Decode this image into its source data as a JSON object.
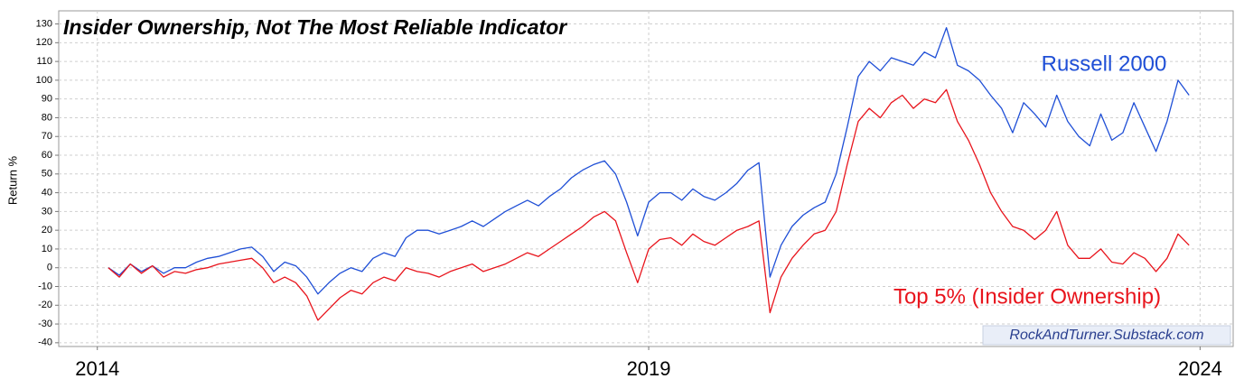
{
  "chart_data": {
    "type": "line",
    "title": "Insider Ownership, Not The Most Reliable Indicator",
    "y_label": "Return %",
    "watermark": "RockAndTurner.Substack.com",
    "grid": true,
    "xlim": [
      2013.65,
      2024.3
    ],
    "xticks": [
      2014,
      2019,
      2024
    ],
    "ylim": [
      -42,
      137
    ],
    "yticks": [
      -40,
      -30,
      -20,
      -10,
      0,
      10,
      20,
      30,
      40,
      50,
      60,
      70,
      80,
      90,
      100,
      110,
      120,
      130
    ],
    "x": [
      2014.1,
      2014.2,
      2014.3,
      2014.4,
      2014.5,
      2014.6,
      2014.7,
      2014.8,
      2014.9,
      2015.0,
      2015.1,
      2015.2,
      2015.3,
      2015.4,
      2015.5,
      2015.6,
      2015.7,
      2015.8,
      2015.9,
      2016.0,
      2016.1,
      2016.2,
      2016.3,
      2016.4,
      2016.5,
      2016.6,
      2016.7,
      2016.8,
      2016.9,
      2017.0,
      2017.1,
      2017.2,
      2017.3,
      2017.4,
      2017.5,
      2017.6,
      2017.7,
      2017.8,
      2017.9,
      2018.0,
      2018.1,
      2018.2,
      2018.3,
      2018.4,
      2018.5,
      2018.6,
      2018.7,
      2018.8,
      2018.9,
      2019.0,
      2019.1,
      2019.2,
      2019.3,
      2019.4,
      2019.5,
      2019.6,
      2019.7,
      2019.8,
      2019.9,
      2020.0,
      2020.1,
      2020.2,
      2020.3,
      2020.4,
      2020.5,
      2020.6,
      2020.7,
      2020.8,
      2020.9,
      2021.0,
      2021.1,
      2021.2,
      2021.3,
      2021.4,
      2021.5,
      2021.6,
      2021.7,
      2021.8,
      2021.9,
      2022.0,
      2022.1,
      2022.2,
      2022.3,
      2022.4,
      2022.5,
      2022.6,
      2022.7,
      2022.8,
      2022.9,
      2023.0,
      2023.1,
      2023.2,
      2023.3,
      2023.4,
      2023.5,
      2023.6,
      2023.7,
      2023.8,
      2023.9
    ],
    "series": [
      {
        "name": "Russell 2000",
        "color": "#1f4fd6",
        "values": [
          0,
          -4,
          2,
          -2,
          1,
          -3,
          0,
          0,
          3,
          5,
          6,
          8,
          10,
          11,
          6,
          -2,
          3,
          1,
          -5,
          -14,
          -8,
          -3,
          0,
          -2,
          5,
          8,
          6,
          16,
          20,
          20,
          18,
          20,
          22,
          25,
          22,
          26,
          30,
          33,
          36,
          33,
          38,
          42,
          48,
          52,
          55,
          57,
          50,
          35,
          17,
          35,
          40,
          40,
          36,
          42,
          38,
          36,
          40,
          45,
          52,
          56,
          -5,
          12,
          22,
          28,
          32,
          35,
          50,
          75,
          102,
          110,
          105,
          112,
          110,
          108,
          115,
          112,
          128,
          108,
          105,
          100,
          92,
          85,
          72,
          88,
          82,
          75,
          92,
          78,
          70,
          65,
          82,
          68,
          72,
          88,
          75,
          62,
          78,
          100,
          92
        ]
      },
      {
        "name": "Top 5% (Insider Ownership)",
        "color": "#e8141c",
        "values": [
          0,
          -5,
          2,
          -3,
          1,
          -5,
          -2,
          -3,
          -1,
          0,
          2,
          3,
          4,
          5,
          0,
          -8,
          -5,
          -8,
          -15,
          -28,
          -22,
          -16,
          -12,
          -14,
          -8,
          -5,
          -7,
          0,
          -2,
          -3,
          -5,
          -2,
          0,
          2,
          -2,
          0,
          2,
          5,
          8,
          6,
          10,
          14,
          18,
          22,
          27,
          30,
          25,
          8,
          -8,
          10,
          15,
          16,
          12,
          18,
          14,
          12,
          16,
          20,
          22,
          25,
          -24,
          -5,
          5,
          12,
          18,
          20,
          30,
          55,
          78,
          85,
          80,
          88,
          92,
          85,
          90,
          88,
          95,
          78,
          68,
          55,
          40,
          30,
          22,
          20,
          15,
          20,
          30,
          12,
          5,
          5,
          10,
          3,
          2,
          8,
          5,
          -2,
          5,
          18,
          12
        ]
      }
    ]
  }
}
